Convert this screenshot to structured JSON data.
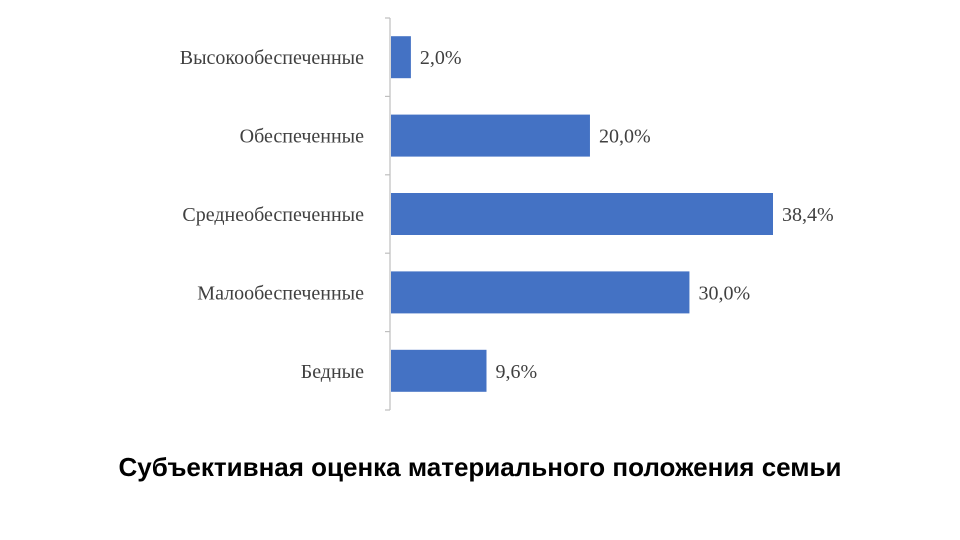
{
  "caption": "Субъективная оценка материального положения семьи",
  "chart_data": {
    "type": "bar",
    "orientation": "horizontal",
    "categories": [
      "Высокообеспеченные",
      "Обеспеченные",
      "Среднеобеспеченные",
      "Малообеспеченные",
      "Бедные"
    ],
    "values": [
      2.0,
      20.0,
      38.4,
      30.0,
      9.6
    ],
    "value_labels": [
      "2,0%",
      "20,0%",
      "38,4%",
      "30,0%",
      "9,6%"
    ],
    "title": "",
    "xlabel": "",
    "ylabel": "",
    "xlim": [
      0,
      38.4
    ],
    "grid": false,
    "legend": "none",
    "bar_color": "#4472C4"
  }
}
